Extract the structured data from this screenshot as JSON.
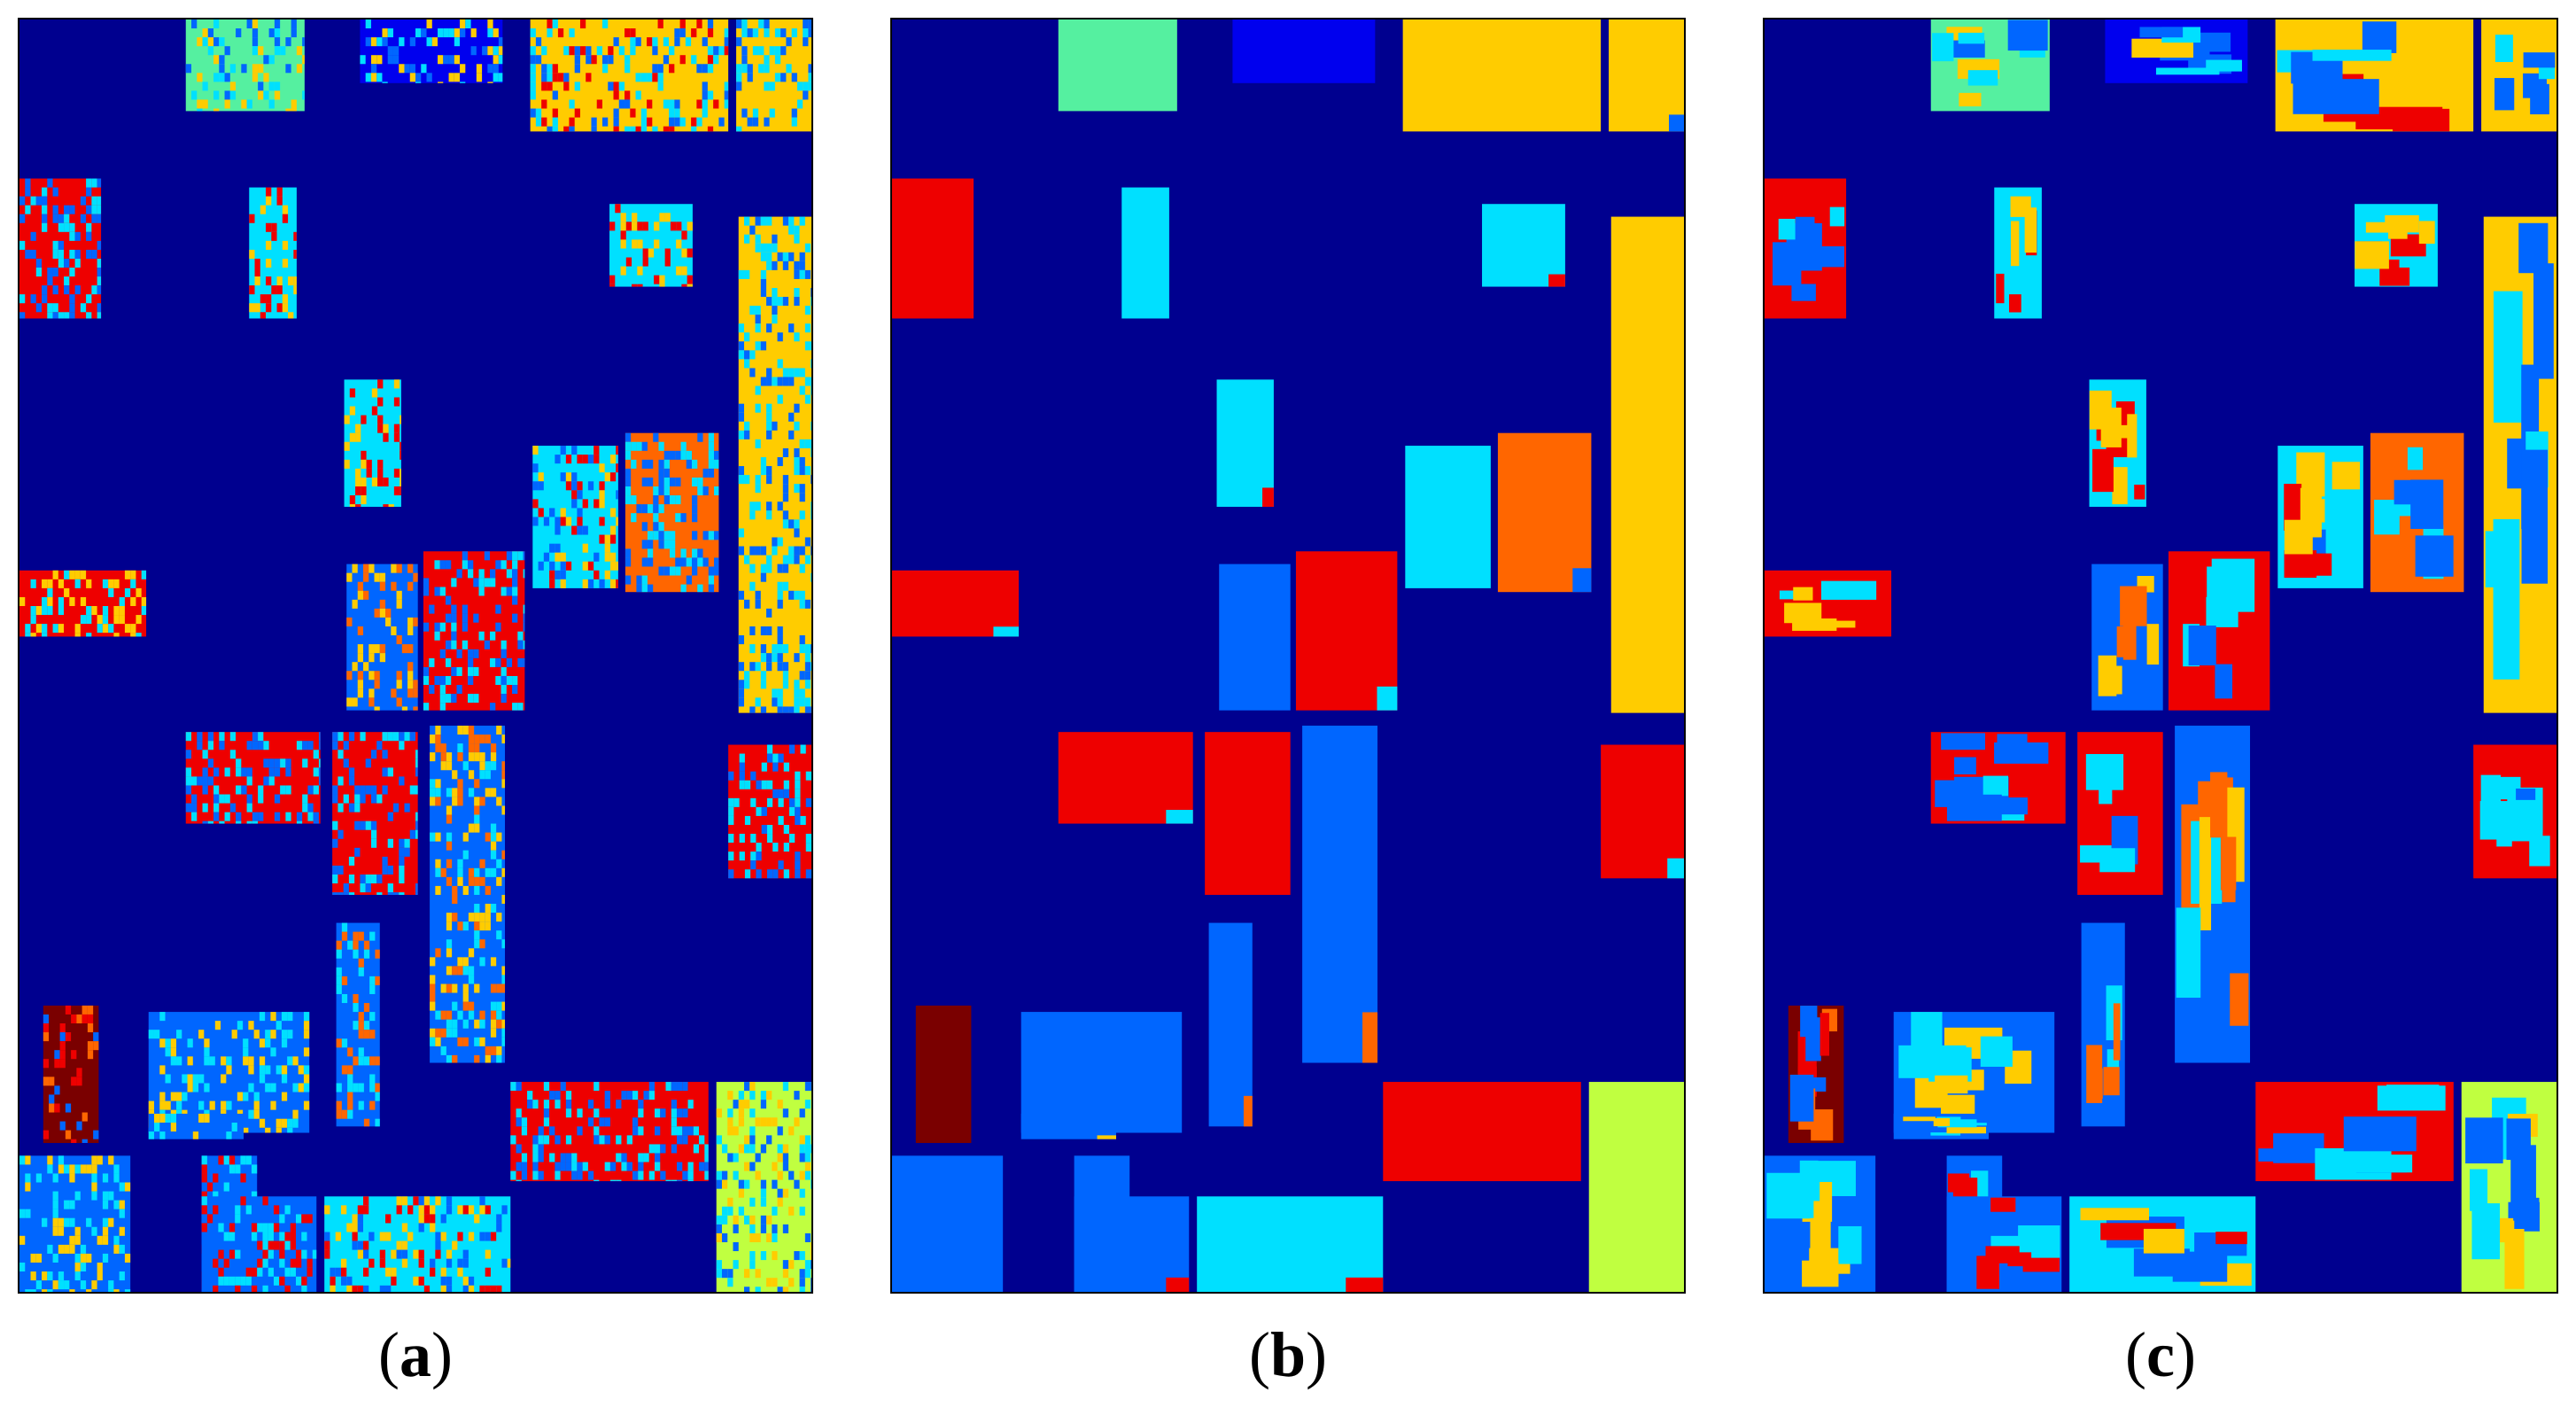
{
  "figure": {
    "panels": [
      {
        "id": "a",
        "caption_letter": "a",
        "style": "noisy"
      },
      {
        "id": "b",
        "caption_letter": "b",
        "style": "clean"
      },
      {
        "id": "c",
        "caption_letter": "c",
        "style": "patchy"
      }
    ],
    "caption_open": "(",
    "caption_close": ")"
  },
  "colors": {
    "background": "#00008f",
    "blue": "#0066ff",
    "red": "#ee0000",
    "cyan": "#00e0ff",
    "yellow": "#ffcc00",
    "mint": "#55f0a0",
    "orange": "#ff6600",
    "dark_red": "#7a0000",
    "lime": "#c0ff40",
    "deep_blue": "#0000ee"
  }
}
